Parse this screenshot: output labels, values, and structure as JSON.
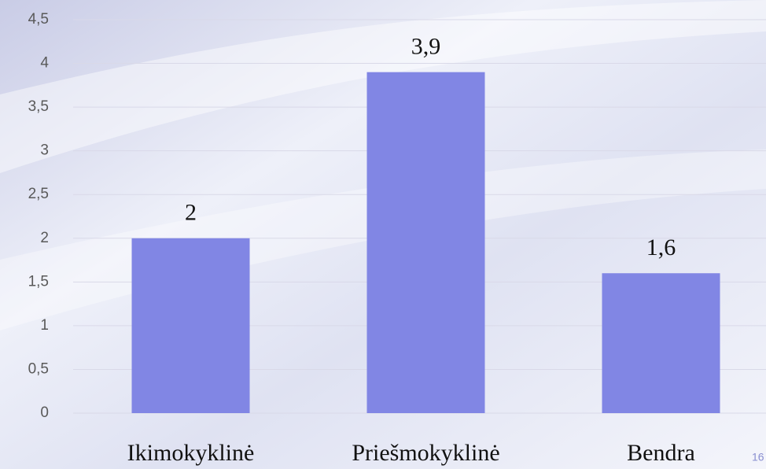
{
  "chart_data": {
    "type": "bar",
    "categories": [
      "Ikimokyklinė",
      "Priešmokyklinė",
      "Bendra"
    ],
    "values": [
      2,
      3.9,
      1.6
    ],
    "value_labels": [
      "2",
      "3,9",
      "1,6"
    ],
    "color": "#8186e4",
    "ylim": [
      0,
      4.5
    ],
    "yticks": [
      0,
      {
        "value": 0.5,
        "label": "0,5"
      },
      1,
      {
        "value": 1.5,
        "label": "1,5"
      },
      2,
      {
        "value": 2.5,
        "label": "2,5"
      },
      3,
      {
        "value": 3.5,
        "label": "3,5"
      },
      4,
      {
        "value": 4.5,
        "label": "4,5"
      }
    ],
    "grid": true
  },
  "page_number": "16"
}
